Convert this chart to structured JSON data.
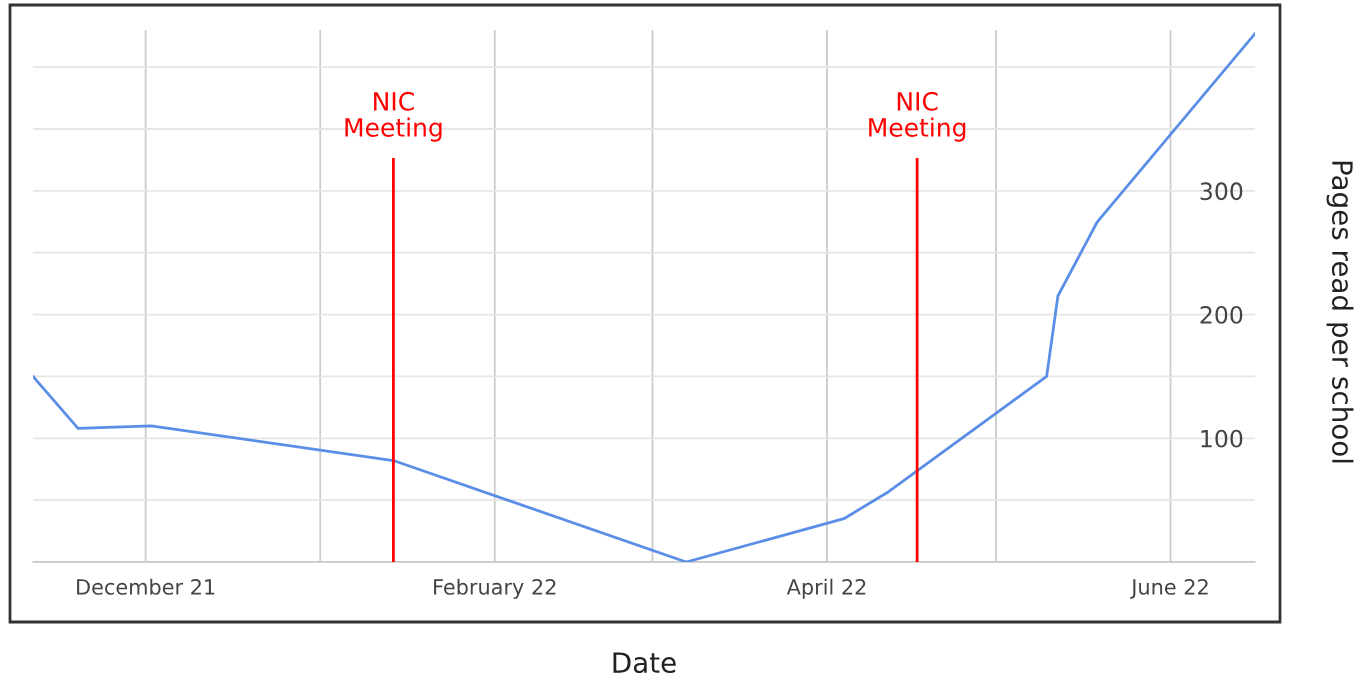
{
  "chart_data": {
    "type": "line",
    "xlabel": "Date",
    "y2label": "Pages read per school",
    "x": [
      "2021-11-11",
      "2021-11-19",
      "2021-12-02",
      "2022-01-14",
      "2022-03-07",
      "2022-04-04",
      "2022-04-12",
      "2022-05-10",
      "2022-05-12",
      "2022-05-19",
      "2022-06-16"
    ],
    "series": [
      {
        "color": "#5b8ee6",
        "values": [
          150,
          108,
          110,
          82,
          0,
          35,
          57,
          150,
          215,
          275,
          427
        ],
        "axis": "y2"
      }
    ],
    "xlim": [
      "2021-11-11",
      "2022-06-16"
    ],
    "xticks": [
      {
        "value": "2021-12-01",
        "label": "December 21"
      },
      {
        "value": "2022-01-01",
        "label": null
      },
      {
        "value": "2022-02-01",
        "label": "February 22"
      },
      {
        "value": "2022-03-01",
        "label": null
      },
      {
        "value": "2022-04-01",
        "label": "April 22"
      },
      {
        "value": "2022-05-01",
        "label": null
      },
      {
        "value": "2022-06-01",
        "label": "June 22"
      }
    ],
    "y2lim": [
      0,
      430
    ],
    "y2ticks": [
      {
        "value": 0,
        "label": null
      },
      {
        "value": 50,
        "label": null
      },
      100,
      {
        "value": 150,
        "label": null
      },
      200,
      {
        "value": 250,
        "label": null
      },
      300,
      {
        "value": 350,
        "label": null
      },
      {
        "value": 400,
        "label": null
      }
    ],
    "ref_lines": [
      {
        "axis": "x",
        "value": "2022-01-14",
        "label": "NIC\nMeeting",
        "color": "#ff0000"
      },
      {
        "axis": "x",
        "value": "2022-04-17",
        "label": "NIC\nMeeting",
        "color": "#ff0000"
      }
    ],
    "grid": true,
    "legend": false
  }
}
